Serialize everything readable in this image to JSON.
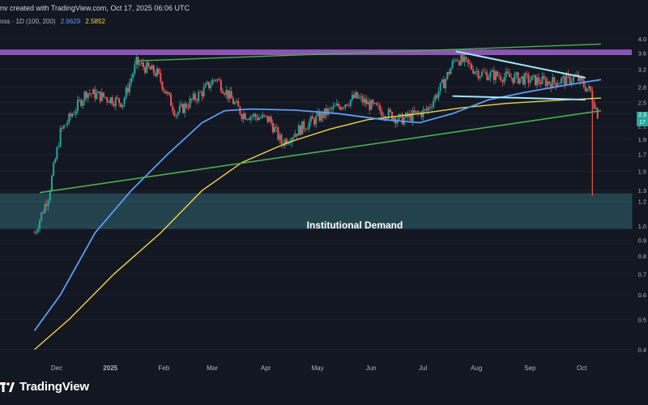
{
  "header": {
    "credit": "nv created with TradingView.com, Oct 17, 2025 06:06 UTC",
    "symbol": "oss · 1D (100, 200)",
    "ma_blue_value": "2.9629",
    "ma_yellow_value": "2.5852"
  },
  "colors": {
    "background": "#131722",
    "up_candle": "#26a69a",
    "down_candle": "#ef5350",
    "ma100": "#5b9cf5",
    "ma200": "#f0d54a",
    "trendline": "#4caf50",
    "pattern_lines": "#9ee7f5",
    "resistance_zone": "#a25fcf",
    "demand_zone": "#4fb3bf"
  },
  "branding": {
    "logo_text": "TradingView",
    "logo_icon": "tradingview-logo-icon"
  },
  "price_tags": {
    "last_price": "2.3",
    "countdown": "17"
  },
  "chart_data": {
    "type": "candlestick",
    "x_tick_labels": [
      "Dec",
      "2025",
      "Feb",
      "Mar",
      "Apr",
      "May",
      "Jun",
      "Jul",
      "Aug",
      "Sep",
      "Oct"
    ],
    "y_tick_labels": [
      "4.0",
      "3.6",
      "3.2",
      "2.8",
      "2.5",
      "2.3",
      "2.1",
      "1.9",
      "1.7",
      "1.5",
      "1.3",
      "1.2",
      "1.0",
      "0.9",
      "0.8",
      "0.7",
      "0.6",
      "0.5",
      "0.4"
    ],
    "y_scale": "log",
    "ylim": [
      0.38,
      4.2
    ],
    "annotations": [
      "Institutional Demand"
    ],
    "zones": [
      {
        "name": "resistance",
        "low": 3.55,
        "high": 3.7
      },
      {
        "name": "Institutional Demand",
        "low": 0.98,
        "high": 1.27
      }
    ],
    "moving_averages": [
      {
        "period": 100,
        "last": 2.9629
      },
      {
        "period": 200,
        "last": 2.5852
      }
    ],
    "series_anchors": [
      {
        "date": "Nov 20",
        "price": 0.95
      },
      {
        "date": "Nov 28",
        "price": 1.25
      },
      {
        "date": "Dec 5",
        "price": 2.0
      },
      {
        "date": "Dec 20",
        "price": 2.7
      },
      {
        "date": "Jan 10",
        "price": 2.5
      },
      {
        "date": "Jan 18",
        "price": 3.35
      },
      {
        "date": "Jan 30",
        "price": 3.1
      },
      {
        "date": "Feb 10",
        "price": 2.3
      },
      {
        "date": "Feb 25",
        "price": 2.7
      },
      {
        "date": "Mar 5",
        "price": 3.0
      },
      {
        "date": "Mar 20",
        "price": 2.3
      },
      {
        "date": "Apr 5",
        "price": 2.2
      },
      {
        "date": "Apr 12",
        "price": 1.85
      },
      {
        "date": "Apr 25",
        "price": 2.1
      },
      {
        "date": "May 10",
        "price": 2.35
      },
      {
        "date": "May 25",
        "price": 2.6
      },
      {
        "date": "Jun 5",
        "price": 2.4
      },
      {
        "date": "Jun 20",
        "price": 2.2
      },
      {
        "date": "Jul 5",
        "price": 2.35
      },
      {
        "date": "Jul 15",
        "price": 2.9
      },
      {
        "date": "Jul 22",
        "price": 3.5
      },
      {
        "date": "Aug 5",
        "price": 3.1
      },
      {
        "date": "Aug 25",
        "price": 3.0
      },
      {
        "date": "Sep 15",
        "price": 2.9
      },
      {
        "date": "Sep 30",
        "price": 3.0
      },
      {
        "date": "Oct 8",
        "price": 2.7
      },
      {
        "date": "Oct 12",
        "price": 2.3
      }
    ]
  }
}
